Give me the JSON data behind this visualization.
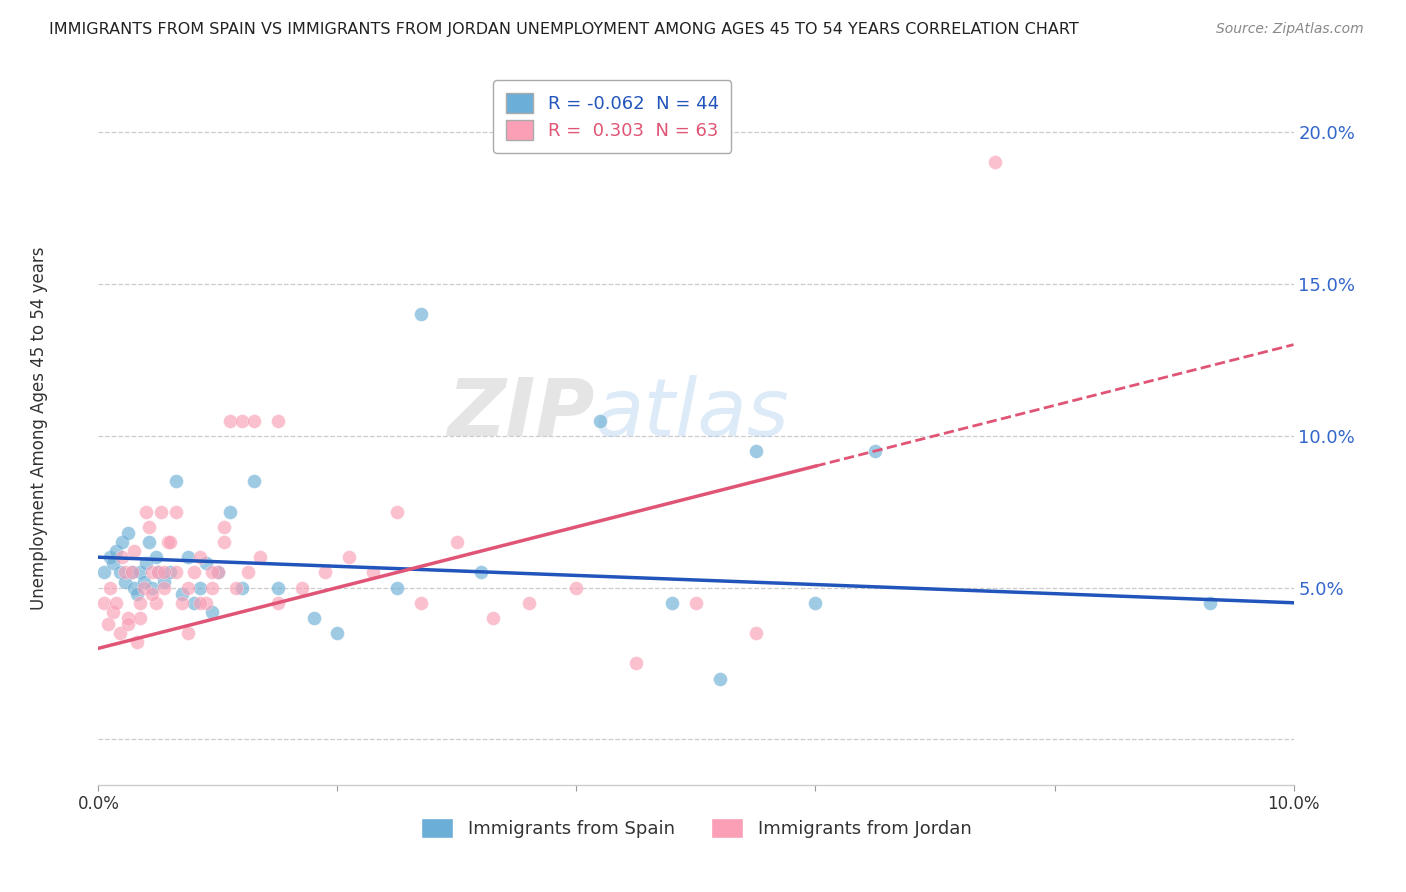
{
  "title": "IMMIGRANTS FROM SPAIN VS IMMIGRANTS FROM JORDAN UNEMPLOYMENT AMONG AGES 45 TO 54 YEARS CORRELATION CHART",
  "source": "Source: ZipAtlas.com",
  "ylabel": "Unemployment Among Ages 45 to 54 years",
  "xlim": [
    0.0,
    10.0
  ],
  "ylim": [
    -1.5,
    22.0
  ],
  "spain_color": "#6baed6",
  "jordan_color": "#fa9fb5",
  "spain_line_color": "#2255bb",
  "jordan_line_color": "#e05575",
  "spain_R": -0.062,
  "spain_N": 44,
  "jordan_R": 0.303,
  "jordan_N": 63,
  "spain_x": [
    0.05,
    0.1,
    0.12,
    0.15,
    0.18,
    0.2,
    0.22,
    0.25,
    0.28,
    0.3,
    0.32,
    0.35,
    0.38,
    0.4,
    0.42,
    0.45,
    0.48,
    0.5,
    0.55,
    0.6,
    0.65,
    0.7,
    0.75,
    0.8,
    0.85,
    0.9,
    0.95,
    1.0,
    1.1,
    1.2,
    1.3,
    1.5,
    1.8,
    2.0,
    2.5,
    2.7,
    3.2,
    4.2,
    4.8,
    5.2,
    5.5,
    6.0,
    6.5,
    9.3
  ],
  "spain_y": [
    5.5,
    6.0,
    5.8,
    6.2,
    5.5,
    6.5,
    5.2,
    6.8,
    5.5,
    5.0,
    4.8,
    5.5,
    5.2,
    5.8,
    6.5,
    5.0,
    6.0,
    5.5,
    5.2,
    5.5,
    8.5,
    4.8,
    6.0,
    4.5,
    5.0,
    5.8,
    4.2,
    5.5,
    7.5,
    5.0,
    8.5,
    5.0,
    4.0,
    3.5,
    5.0,
    14.0,
    5.5,
    10.5,
    4.5,
    2.0,
    9.5,
    4.5,
    9.5,
    4.5
  ],
  "jordan_x": [
    0.05,
    0.08,
    0.1,
    0.12,
    0.15,
    0.18,
    0.2,
    0.22,
    0.25,
    0.28,
    0.3,
    0.32,
    0.35,
    0.38,
    0.4,
    0.42,
    0.45,
    0.48,
    0.5,
    0.52,
    0.55,
    0.58,
    0.6,
    0.65,
    0.7,
    0.75,
    0.8,
    0.85,
    0.9,
    0.95,
    1.0,
    1.05,
    1.1,
    1.2,
    1.3,
    1.5,
    1.7,
    1.9,
    2.1,
    2.3,
    2.5,
    2.7,
    3.0,
    3.3,
    3.6,
    4.0,
    4.5,
    5.0,
    5.5,
    7.5,
    0.25,
    0.35,
    0.45,
    0.55,
    0.65,
    0.75,
    0.85,
    0.95,
    1.05,
    1.15,
    1.25,
    1.35,
    1.5
  ],
  "jordan_y": [
    4.5,
    3.8,
    5.0,
    4.2,
    4.5,
    3.5,
    6.0,
    5.5,
    4.0,
    5.5,
    6.2,
    3.2,
    4.5,
    5.0,
    7.5,
    7.0,
    5.5,
    4.5,
    5.5,
    7.5,
    5.0,
    6.5,
    6.5,
    5.5,
    4.5,
    5.0,
    5.5,
    6.0,
    4.5,
    5.0,
    5.5,
    6.5,
    10.5,
    10.5,
    10.5,
    4.5,
    5.0,
    5.5,
    6.0,
    5.5,
    7.5,
    4.5,
    6.5,
    4.0,
    4.5,
    5.0,
    2.5,
    4.5,
    3.5,
    19.0,
    3.8,
    4.0,
    4.8,
    5.5,
    7.5,
    3.5,
    4.5,
    5.5,
    7.0,
    5.0,
    5.5,
    6.0,
    10.5
  ],
  "jordan_dash_start": 6.0,
  "background_color": "#ffffff",
  "grid_color": "#cccccc",
  "watermark_zip": "ZIP",
  "watermark_atlas": "atlas"
}
